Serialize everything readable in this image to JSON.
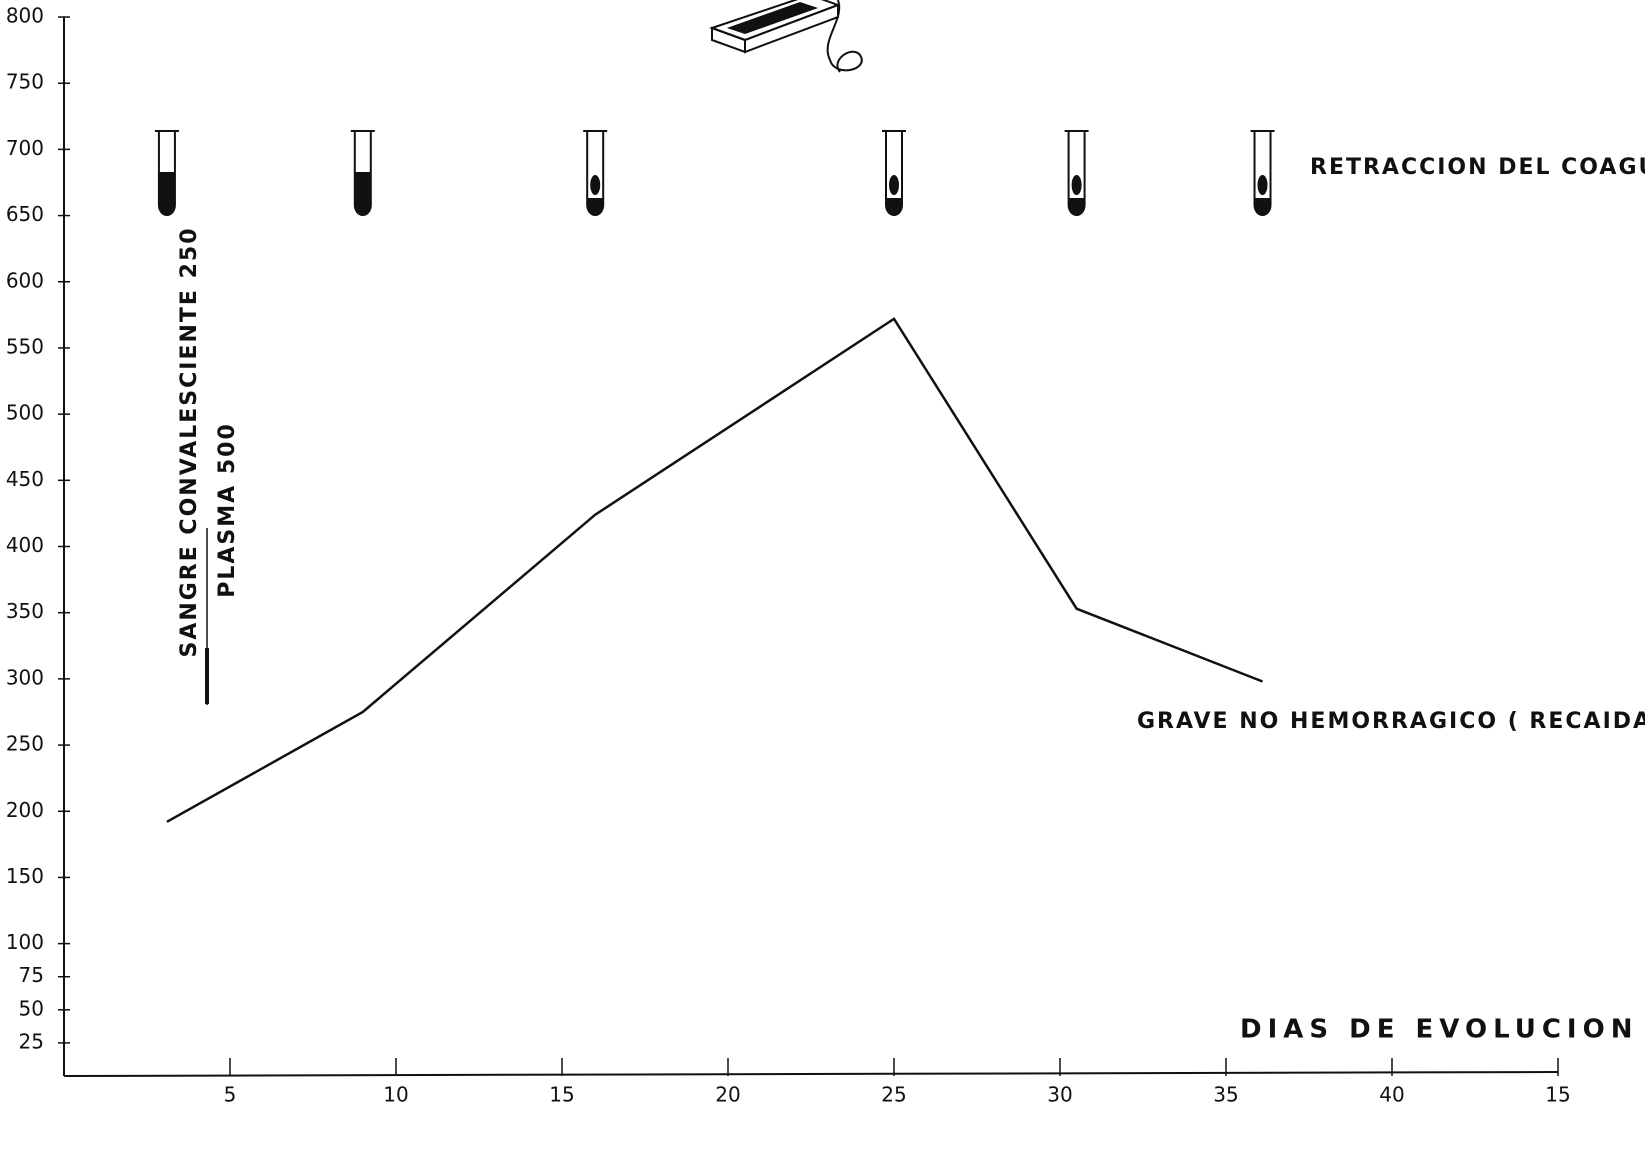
{
  "chart_data": {
    "type": "line",
    "x": [
      3.1,
      9,
      16,
      25,
      30.5,
      36.1
    ],
    "series": [
      {
        "name": "GRAVE NO HEMORRAGICO ( RECAIDA)",
        "color": "#111111",
        "values": [
          192,
          275,
          424,
          572,
          353,
          298
        ]
      }
    ],
    "xlim": [
      0,
      45
    ],
    "xticks": [
      5,
      10,
      15,
      20,
      25,
      30,
      35,
      40,
      {
        "value": 45,
        "label": "15"
      }
    ],
    "ylim": [
      0,
      800
    ],
    "yticks": [
      25,
      50,
      75,
      100,
      150,
      200,
      250,
      300,
      350,
      400,
      450,
      500,
      550,
      600,
      650,
      700,
      750,
      800
    ],
    "xlabel": "DIAS DE EVOLUCION",
    "annotations": [
      "RETRACCION DEL COAGULO",
      "SANGRE CONVALESCIENTE 250",
      "PLASMA 500"
    ]
  }
}
